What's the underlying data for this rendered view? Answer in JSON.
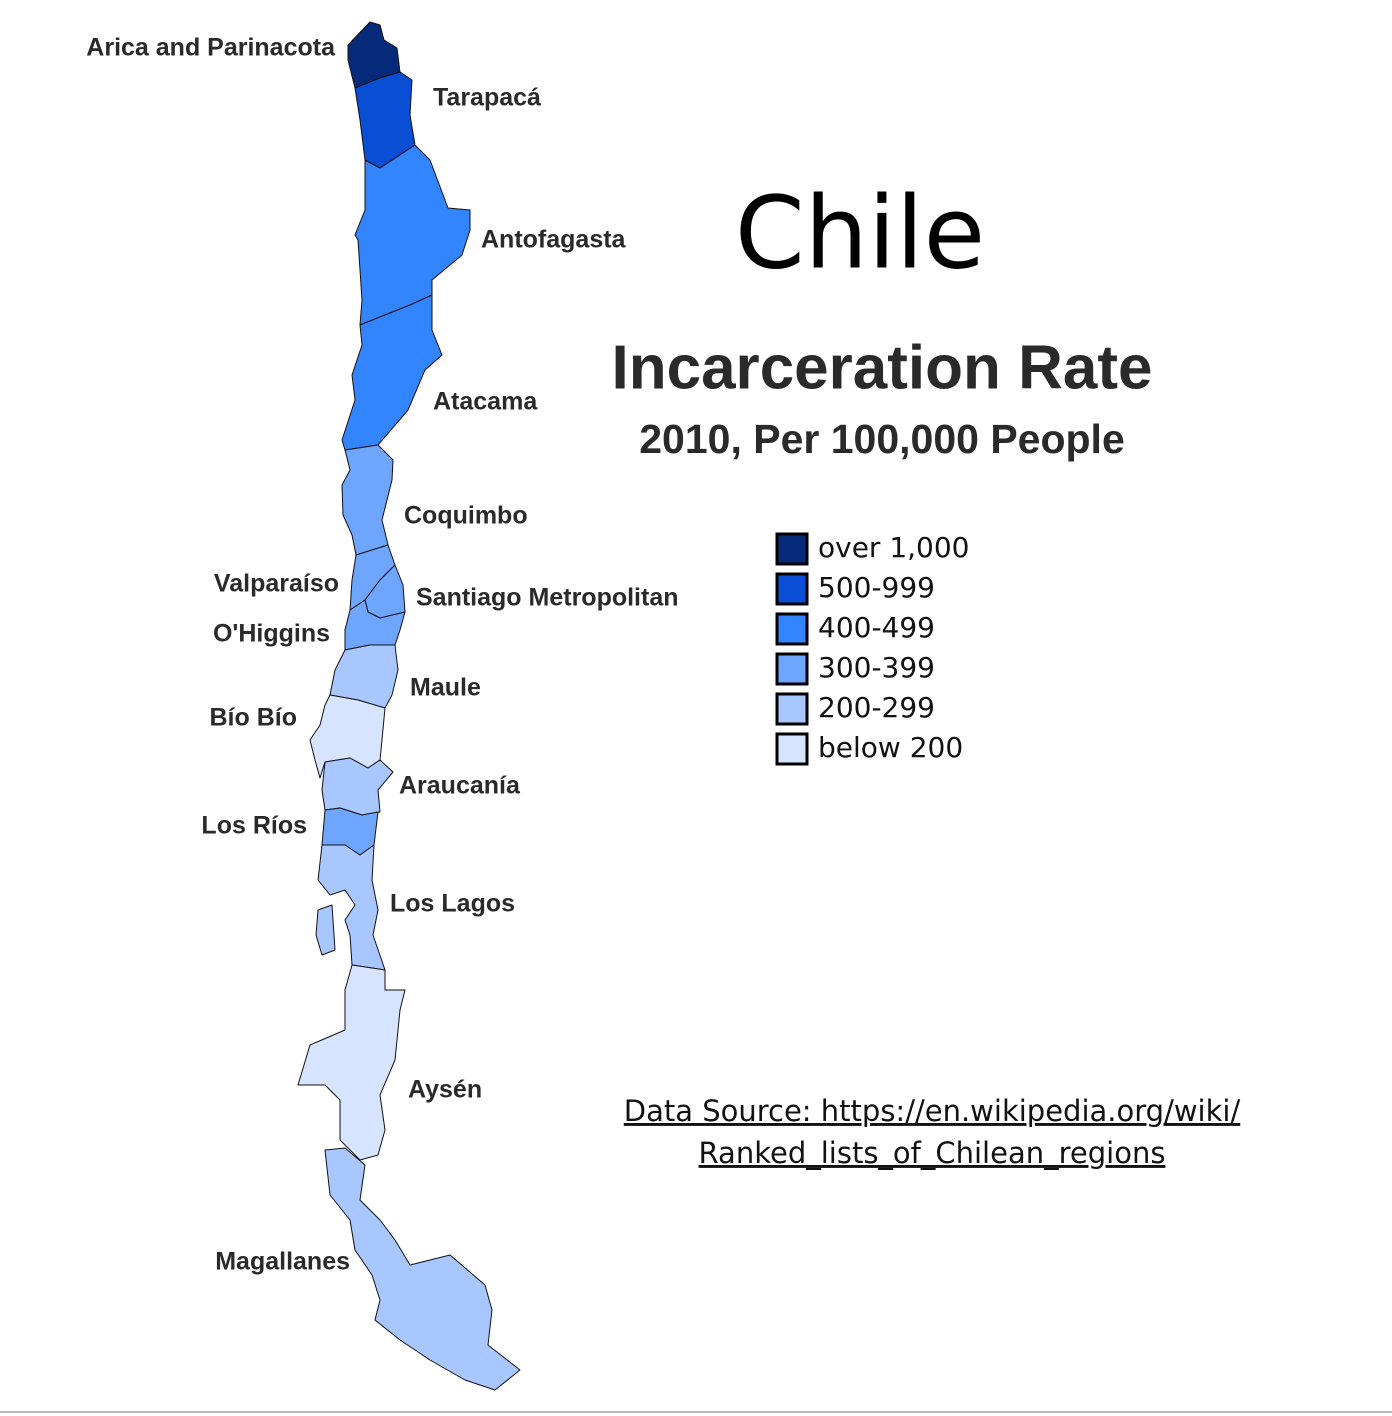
{
  "title": "Chile",
  "subtitle": "Incarceration Rate",
  "subtitle2": "2010, Per 100,000 People",
  "source": [
    "Data Source: https://en.wikipedia.org/wiki/",
    "Ranked_lists_of_Chilean_regions"
  ],
  "legend": [
    {
      "label": "over 1,000",
      "color": "#062a7a"
    },
    {
      "label": "500-999",
      "color": "#0a4ed6"
    },
    {
      "label": "400-499",
      "color": "#3385ff"
    },
    {
      "label": "300-399",
      "color": "#6ea5ff"
    },
    {
      "label": "200-299",
      "color": "#a8c6ff"
    },
    {
      "label": "below 200",
      "color": "#d6e4ff"
    }
  ],
  "regions": [
    {
      "name": "Arica and Parinacota",
      "color": "#062a7a"
    },
    {
      "name": "Tarapacá",
      "color": "#0a4ed6"
    },
    {
      "name": "Antofagasta",
      "color": "#3385ff"
    },
    {
      "name": "Atacama",
      "color": "#3385ff"
    },
    {
      "name": "Coquimbo",
      "color": "#6ea5ff"
    },
    {
      "name": "Valparaíso",
      "color": "#6ea5ff"
    },
    {
      "name": "Santiago Metropolitan",
      "color": "#6ea5ff"
    },
    {
      "name": "O'Higgins",
      "color": "#6ea5ff"
    },
    {
      "name": "Maule",
      "color": "#a8c6ff"
    },
    {
      "name": "Bío Bío",
      "color": "#d6e4ff"
    },
    {
      "name": "Araucanía",
      "color": "#a8c6ff"
    },
    {
      "name": "Los Ríos",
      "color": "#6ea5ff"
    },
    {
      "name": "Los Lagos",
      "color": "#a8c6ff"
    },
    {
      "name": "Aysén",
      "color": "#d6e4ff"
    },
    {
      "name": "Magallanes",
      "color": "#a8c6ff"
    }
  ]
}
